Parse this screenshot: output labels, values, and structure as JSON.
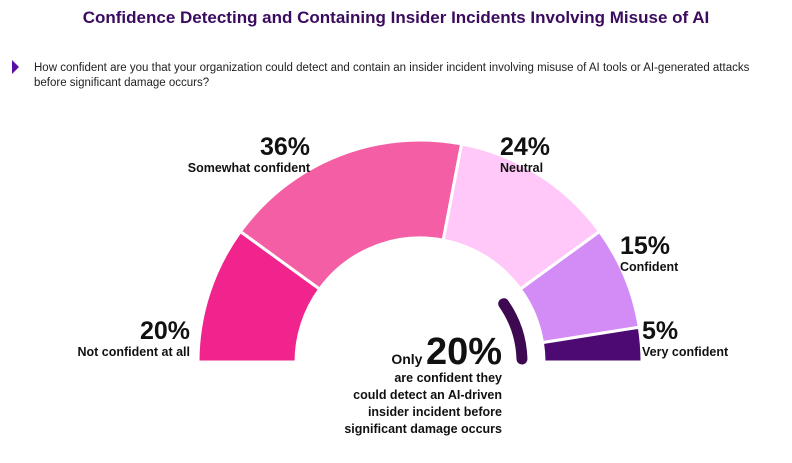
{
  "title": "Confidence Detecting and Containing Insider Incidents Involving Misuse of AI",
  "question": "How confident are you that your organization could detect and contain an insider incident involving misuse of AI tools or AI-generated attacks before significant damage occurs?",
  "chart_data": {
    "type": "pie",
    "shape": "semicircle-donut",
    "categories": [
      "Not confident at all",
      "Somewhat confident",
      "Neutral",
      "Confident",
      "Very confident"
    ],
    "values": [
      20,
      36,
      24,
      15,
      5
    ],
    "value_labels": [
      "20%",
      "36%",
      "24%",
      "15%",
      "5%"
    ],
    "colors": [
      "#f0248c",
      "#f45ea4",
      "#ffc8f8",
      "#d38cf6",
      "#4c0a72"
    ],
    "highlight": {
      "categories": [
        "Confident",
        "Very confident"
      ],
      "total": 20,
      "color": "#3d0a52"
    }
  },
  "callout": {
    "prefix": "Only",
    "value": "20%",
    "text_lines": [
      "are confident they",
      "could detect an AI-driven",
      "insider incident before",
      "significant damage occurs"
    ]
  }
}
